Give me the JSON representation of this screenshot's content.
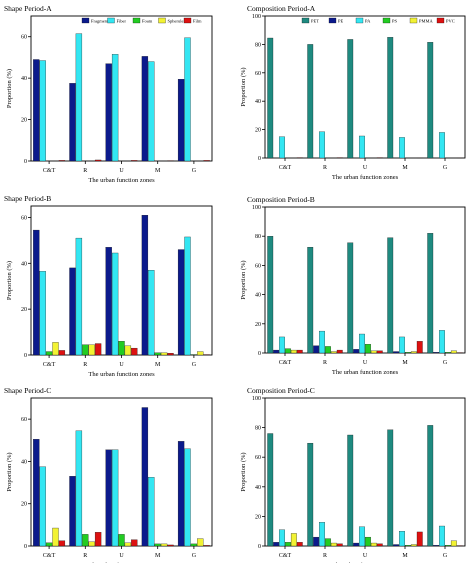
{
  "chart_data": [
    {
      "type": "bar",
      "title": "Shape  Period-A",
      "xlabel": "The urban function zones",
      "ylabel": "Proportion (%)",
      "ylim": [
        0,
        70
      ],
      "yticks": [
        0,
        20,
        40,
        60
      ],
      "categories": [
        "C&T",
        "R",
        "U",
        "M",
        "G"
      ],
      "legend_position": "top",
      "series": [
        {
          "name": "Fragment",
          "color": "#0b1a8c",
          "values": [
            49,
            37.5,
            47,
            50.5,
            39.5
          ]
        },
        {
          "name": "Fiber",
          "color": "#33e6f2",
          "values": [
            48.5,
            61.5,
            51.5,
            48,
            59.5
          ]
        },
        {
          "name": "Foam",
          "color": "#22cc22",
          "values": [
            0,
            0,
            0,
            0,
            0
          ]
        },
        {
          "name": "Spherule",
          "color": "#f2f233",
          "values": [
            0,
            0,
            0,
            0,
            0
          ]
        },
        {
          "name": "Film",
          "color": "#dd1111",
          "values": [
            0.3,
            0.5,
            0.3,
            0.2,
            0.3
          ]
        }
      ]
    },
    {
      "type": "bar",
      "title": "Composition  Period-A",
      "xlabel": "The urban function zones",
      "ylabel": "Proportion (%)",
      "ylim": [
        0,
        100
      ],
      "yticks": [
        0,
        20,
        40,
        60,
        80,
        100
      ],
      "categories": [
        "C&T",
        "R",
        "U",
        "M",
        "G"
      ],
      "legend_position": "top",
      "series": [
        {
          "name": "PET",
          "color": "#1f8a80",
          "values": [
            84.5,
            80,
            83.5,
            85,
            81.5
          ]
        },
        {
          "name": "PE",
          "color": "#0b1a8c",
          "values": [
            0,
            0,
            0,
            0,
            0
          ]
        },
        {
          "name": "PA",
          "color": "#33e6f2",
          "values": [
            15,
            18.5,
            15.5,
            14.5,
            18
          ]
        },
        {
          "name": "PS",
          "color": "#22cc22",
          "values": [
            0,
            0,
            0,
            0,
            0
          ]
        },
        {
          "name": "PMMA",
          "color": "#f2f233",
          "values": [
            0,
            0,
            0,
            0,
            0
          ]
        },
        {
          "name": "PVC",
          "color": "#dd1111",
          "values": [
            0.3,
            0.3,
            0.3,
            0.2,
            0.2
          ]
        }
      ]
    },
    {
      "type": "bar",
      "title": "Shape  Period-B",
      "xlabel": "The urban function zones",
      "ylabel": "Proportion (%)",
      "ylim": [
        0,
        65
      ],
      "yticks": [
        0,
        20,
        40,
        60
      ],
      "categories": [
        "C&T",
        "R",
        "U",
        "M",
        "G"
      ],
      "series": [
        {
          "name": "Fragment",
          "color": "#0b1a8c",
          "values": [
            54.5,
            38,
            47,
            61,
            46
          ]
        },
        {
          "name": "Fiber",
          "color": "#33e6f2",
          "values": [
            36.5,
            51,
            44.5,
            37,
            51.5
          ]
        },
        {
          "name": "Foam",
          "color": "#22cc22",
          "values": [
            1.5,
            4.5,
            6,
            1,
            0.2
          ]
        },
        {
          "name": "Spherule",
          "color": "#f2f233",
          "values": [
            5.5,
            4.5,
            4,
            1,
            1.5
          ]
        },
        {
          "name": "Film",
          "color": "#dd1111",
          "values": [
            2,
            5,
            3,
            0.8,
            0.2
          ]
        }
      ]
    },
    {
      "type": "bar",
      "title": "Composition  Period-B",
      "xlabel": "The urban function zones",
      "ylabel": "Proportion (%)",
      "ylim": [
        0,
        100
      ],
      "yticks": [
        0,
        20,
        40,
        60,
        80,
        100
      ],
      "categories": [
        "C&T",
        "R",
        "U",
        "M",
        "G"
      ],
      "series": [
        {
          "name": "PET",
          "color": "#1f8a80",
          "values": [
            80,
            72.5,
            75.5,
            79,
            82
          ]
        },
        {
          "name": "PE",
          "color": "#0b1a8c",
          "values": [
            2,
            5,
            2.5,
            1,
            0.5
          ]
        },
        {
          "name": "PA",
          "color": "#33e6f2",
          "values": [
            11,
            15,
            13,
            11,
            15.5
          ]
        },
        {
          "name": "PS",
          "color": "#22cc22",
          "values": [
            3,
            4.5,
            6,
            0.5,
            0.5
          ]
        },
        {
          "name": "PMMA",
          "color": "#f2f233",
          "values": [
            2,
            1,
            1.5,
            1,
            1.5
          ]
        },
        {
          "name": "PVC",
          "color": "#dd1111",
          "values": [
            2,
            2,
            1.5,
            8,
            0.3
          ]
        }
      ]
    },
    {
      "type": "bar",
      "title": "Shape  Period-C",
      "xlabel": "The urban function zones",
      "ylabel": "Proportion (%)",
      "ylim": [
        0,
        70
      ],
      "yticks": [
        0,
        20,
        40,
        60
      ],
      "categories": [
        "C&T",
        "R",
        "U",
        "M",
        "G"
      ],
      "series": [
        {
          "name": "Fragment",
          "color": "#0b1a8c",
          "values": [
            50.5,
            33,
            45.5,
            65.5,
            49.5
          ]
        },
        {
          "name": "Fiber",
          "color": "#33e6f2",
          "values": [
            37.5,
            54.5,
            45.5,
            32.5,
            46
          ]
        },
        {
          "name": "Foam",
          "color": "#22cc22",
          "values": [
            1.5,
            5.5,
            5.5,
            1,
            1
          ]
        },
        {
          "name": "Spherule",
          "color": "#f2f233",
          "values": [
            8.5,
            2,
            1.5,
            1,
            3.5
          ]
        },
        {
          "name": "Film",
          "color": "#dd1111",
          "values": [
            2.5,
            6.5,
            3,
            0.5,
            0.3
          ]
        }
      ]
    },
    {
      "type": "bar",
      "title": "Composition  Period-C",
      "xlabel": "The urban function zones",
      "ylabel": "Proportion (%)",
      "ylim": [
        0,
        100
      ],
      "yticks": [
        0,
        20,
        40,
        60,
        80,
        100
      ],
      "categories": [
        "C&T",
        "R",
        "U",
        "M",
        "G"
      ],
      "series": [
        {
          "name": "PET",
          "color": "#1f8a80",
          "values": [
            76,
            69.5,
            75,
            78.5,
            81.5
          ]
        },
        {
          "name": "PE",
          "color": "#0b1a8c",
          "values": [
            2.5,
            6,
            2,
            1,
            0.5
          ]
        },
        {
          "name": "PA",
          "color": "#33e6f2",
          "values": [
            11,
            16,
            13,
            10,
            13.5
          ]
        },
        {
          "name": "PS",
          "color": "#22cc22",
          "values": [
            2.5,
            5,
            6,
            0.5,
            0.5
          ]
        },
        {
          "name": "PMMA",
          "color": "#f2f233",
          "values": [
            8.5,
            2,
            2,
            1,
            3.5
          ]
        },
        {
          "name": "PVC",
          "color": "#dd1111",
          "values": [
            2.5,
            1.5,
            1.5,
            9.5,
            0.3
          ]
        }
      ]
    }
  ]
}
